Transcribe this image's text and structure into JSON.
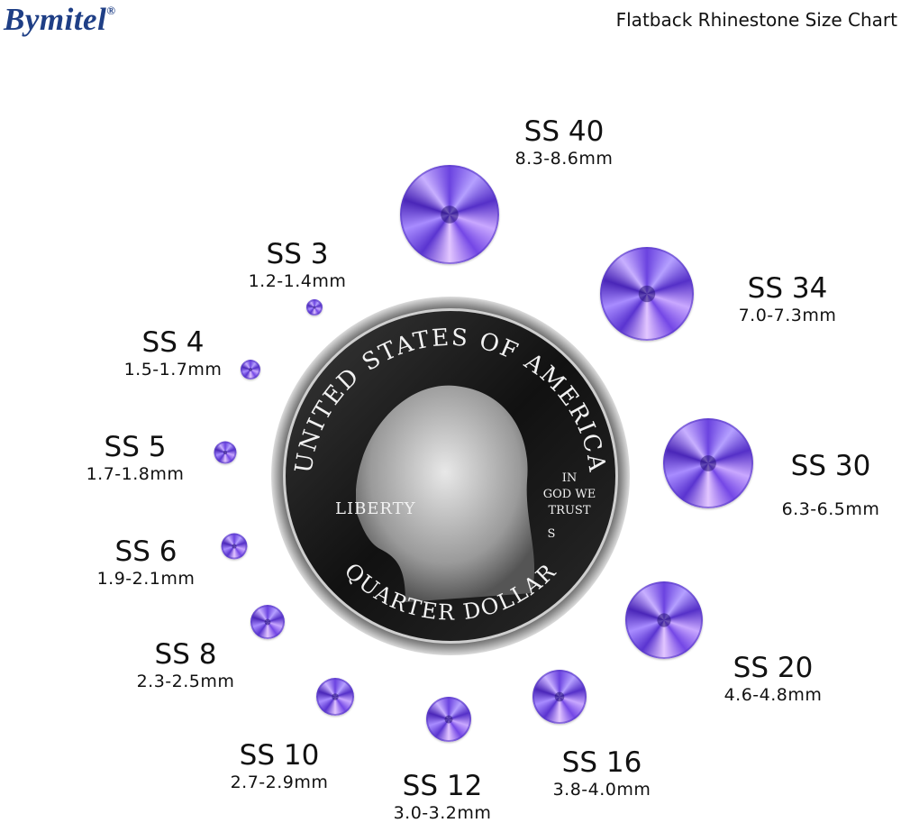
{
  "brand": {
    "name": "Bymitel",
    "registered": "®",
    "color": "#1f3f86"
  },
  "title": "Flatback Rhinestone Size Chart",
  "stone_color": "#7a52e8",
  "coin": {
    "top_text": "UNITED STATES OF AMERICA",
    "bottom_text": "QUARTER DOLLAR",
    "left_text": "LIBERTY",
    "motto": [
      "IN",
      "GOD WE",
      "TRUST"
    ],
    "mint": "S"
  },
  "sizes": [
    {
      "name": "SS 3",
      "size": "1.2-1.4mm"
    },
    {
      "name": "SS 4",
      "size": "1.5-1.7mm"
    },
    {
      "name": "SS 5",
      "size": "1.7-1.8mm"
    },
    {
      "name": "SS 6",
      "size": "1.9-2.1mm"
    },
    {
      "name": "SS 8",
      "size": "2.3-2.5mm"
    },
    {
      "name": "SS 10",
      "size": "2.7-2.9mm"
    },
    {
      "name": "SS 12",
      "size": "3.0-3.2mm"
    },
    {
      "name": "SS 16",
      "size": "3.8-4.0mm"
    },
    {
      "name": "SS 20",
      "size": "4.6-4.8mm"
    },
    {
      "name": "SS 30",
      "size": "6.3-6.5mm"
    },
    {
      "name": "SS 34",
      "size": "7.0-7.3mm"
    },
    {
      "name": "SS 40",
      "size": "8.3-8.6mm"
    }
  ]
}
